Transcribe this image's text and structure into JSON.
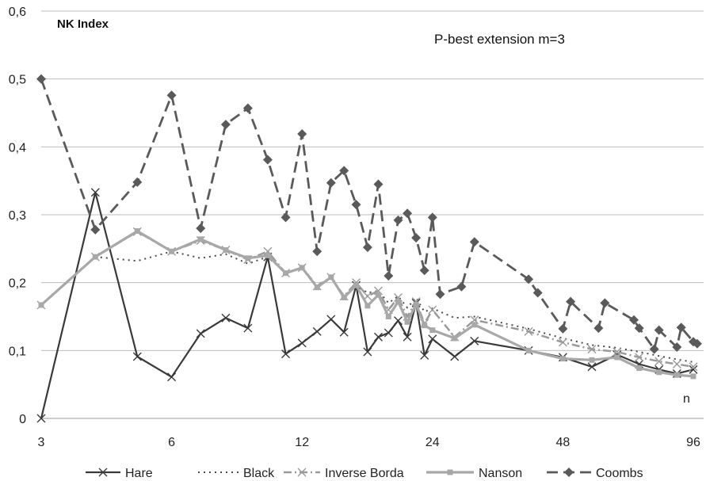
{
  "chart_data": {
    "type": "line",
    "title": "NK Index",
    "subtitle": "P-best extension m=3",
    "xlabel": "n",
    "ylabel": "",
    "x_scale": "log2",
    "x_ticks": [
      3,
      6,
      12,
      24,
      48,
      96
    ],
    "ylim": [
      0,
      0.6
    ],
    "y_ticks": [
      0,
      0.1,
      0.2,
      0.3,
      0.4,
      0.5,
      0.6
    ],
    "y_tick_labels": [
      "0",
      "0,1",
      "0,2",
      "0,3",
      "0,4",
      "0,5",
      "0,6"
    ],
    "grid": "horizontal",
    "legend_position": "bottom",
    "series": [
      {
        "name": "Hare",
        "color": "#3a3a3a",
        "dash": "solid",
        "marker": "x",
        "points": [
          [
            3,
            0.0
          ],
          [
            4,
            0.333
          ],
          [
            5,
            0.091
          ],
          [
            6,
            0.061
          ],
          [
            7,
            0.125
          ],
          [
            8,
            0.148
          ],
          [
            9,
            0.133
          ],
          [
            10,
            0.238
          ],
          [
            11,
            0.095
          ],
          [
            12,
            0.111
          ],
          [
            13,
            0.128
          ],
          [
            14,
            0.146
          ],
          [
            15,
            0.127
          ],
          [
            16,
            0.196
          ],
          [
            17,
            0.098
          ],
          [
            18,
            0.12
          ],
          [
            19,
            0.126
          ],
          [
            20,
            0.144
          ],
          [
            21,
            0.12
          ],
          [
            22,
            0.17
          ],
          [
            23,
            0.093
          ],
          [
            24,
            0.117
          ],
          [
            27,
            0.091
          ],
          [
            30,
            0.114
          ],
          [
            40,
            0.1
          ],
          [
            48,
            0.09
          ],
          [
            56,
            0.076
          ],
          [
            64,
            0.094
          ],
          [
            72,
            0.08
          ],
          [
            80,
            0.072
          ],
          [
            88,
            0.066
          ],
          [
            96,
            0.072
          ]
        ]
      },
      {
        "name": "Black",
        "color": "#4a4a4a",
        "dash": "dotted",
        "marker": "none",
        "points": [
          [
            3,
            0.167
          ],
          [
            4,
            0.238
          ],
          [
            5,
            0.232
          ],
          [
            6,
            0.246
          ],
          [
            7,
            0.236
          ],
          [
            8,
            0.242
          ],
          [
            9,
            0.228
          ],
          [
            10,
            0.238
          ],
          [
            11,
            0.214
          ],
          [
            12,
            0.222
          ],
          [
            13,
            0.193
          ],
          [
            14,
            0.207
          ],
          [
            15,
            0.18
          ],
          [
            16,
            0.196
          ],
          [
            17,
            0.185
          ],
          [
            18,
            0.188
          ],
          [
            19,
            0.17
          ],
          [
            20,
            0.18
          ],
          [
            21,
            0.163
          ],
          [
            22,
            0.178
          ],
          [
            23,
            0.157
          ],
          [
            24,
            0.162
          ],
          [
            27,
            0.148
          ],
          [
            30,
            0.15
          ],
          [
            40,
            0.132
          ],
          [
            48,
            0.118
          ],
          [
            56,
            0.108
          ],
          [
            64,
            0.104
          ],
          [
            72,
            0.098
          ],
          [
            80,
            0.092
          ],
          [
            88,
            0.087
          ],
          [
            96,
            0.083
          ]
        ]
      },
      {
        "name": "Inverse Borda",
        "color": "#9a9a9a",
        "dash": "dashdot",
        "marker": "x",
        "points": [
          [
            3,
            0.167
          ],
          [
            4,
            0.238
          ],
          [
            5,
            0.275
          ],
          [
            6,
            0.246
          ],
          [
            7,
            0.262
          ],
          [
            8,
            0.248
          ],
          [
            9,
            0.234
          ],
          [
            10,
            0.246
          ],
          [
            11,
            0.214
          ],
          [
            12,
            0.222
          ],
          [
            13,
            0.195
          ],
          [
            14,
            0.208
          ],
          [
            15,
            0.18
          ],
          [
            16,
            0.2
          ],
          [
            17,
            0.18
          ],
          [
            18,
            0.188
          ],
          [
            19,
            0.16
          ],
          [
            20,
            0.178
          ],
          [
            21,
            0.15
          ],
          [
            22,
            0.172
          ],
          [
            23,
            0.14
          ],
          [
            24,
            0.16
          ],
          [
            27,
            0.12
          ],
          [
            30,
            0.145
          ],
          [
            40,
            0.128
          ],
          [
            48,
            0.112
          ],
          [
            56,
            0.102
          ],
          [
            64,
            0.098
          ],
          [
            72,
            0.09
          ],
          [
            80,
            0.084
          ],
          [
            88,
            0.08
          ],
          [
            96,
            0.076
          ]
        ]
      },
      {
        "name": "Nanson",
        "color": "#a8a8a8",
        "dash": "solid",
        "marker": "square",
        "points": [
          [
            3,
            0.167
          ],
          [
            4,
            0.238
          ],
          [
            5,
            0.276
          ],
          [
            6,
            0.246
          ],
          [
            7,
            0.264
          ],
          [
            8,
            0.248
          ],
          [
            9,
            0.236
          ],
          [
            10,
            0.24
          ],
          [
            11,
            0.214
          ],
          [
            12,
            0.222
          ],
          [
            13,
            0.193
          ],
          [
            14,
            0.208
          ],
          [
            15,
            0.178
          ],
          [
            16,
            0.196
          ],
          [
            17,
            0.166
          ],
          [
            18,
            0.182
          ],
          [
            19,
            0.15
          ],
          [
            20,
            0.172
          ],
          [
            21,
            0.142
          ],
          [
            22,
            0.168
          ],
          [
            23,
            0.137
          ],
          [
            24,
            0.13
          ],
          [
            27,
            0.118
          ],
          [
            30,
            0.138
          ],
          [
            40,
            0.1
          ],
          [
            48,
            0.088
          ],
          [
            56,
            0.086
          ],
          [
            64,
            0.09
          ],
          [
            72,
            0.074
          ],
          [
            80,
            0.068
          ],
          [
            88,
            0.064
          ],
          [
            96,
            0.062
          ]
        ]
      },
      {
        "name": "Coombs",
        "color": "#5a5a5a",
        "dash": "dashed",
        "marker": "diamond",
        "points": [
          [
            3,
            0.5
          ],
          [
            4,
            0.278
          ],
          [
            5,
            0.348
          ],
          [
            6,
            0.476
          ],
          [
            7,
            0.28
          ],
          [
            8,
            0.433
          ],
          [
            9,
            0.457
          ],
          [
            10,
            0.381
          ],
          [
            11,
            0.296
          ],
          [
            12,
            0.419
          ],
          [
            13,
            0.246
          ],
          [
            14,
            0.347
          ],
          [
            15,
            0.365
          ],
          [
            16,
            0.315
          ],
          [
            17,
            0.252
          ],
          [
            18,
            0.345
          ],
          [
            19,
            0.21
          ],
          [
            20,
            0.292
          ],
          [
            21,
            0.302
          ],
          [
            22,
            0.266
          ],
          [
            23,
            0.218
          ],
          [
            24,
            0.296
          ],
          [
            25,
            0.183
          ],
          [
            28,
            0.194
          ],
          [
            30,
            0.26
          ],
          [
            40,
            0.205
          ],
          [
            42,
            0.185
          ],
          [
            48,
            0.132
          ],
          [
            50,
            0.172
          ],
          [
            58,
            0.133
          ],
          [
            60,
            0.17
          ],
          [
            70,
            0.145
          ],
          [
            72,
            0.133
          ],
          [
            78,
            0.102
          ],
          [
            80,
            0.13
          ],
          [
            88,
            0.105
          ],
          [
            90,
            0.134
          ],
          [
            96,
            0.113
          ],
          [
            98,
            0.11
          ]
        ]
      }
    ]
  }
}
